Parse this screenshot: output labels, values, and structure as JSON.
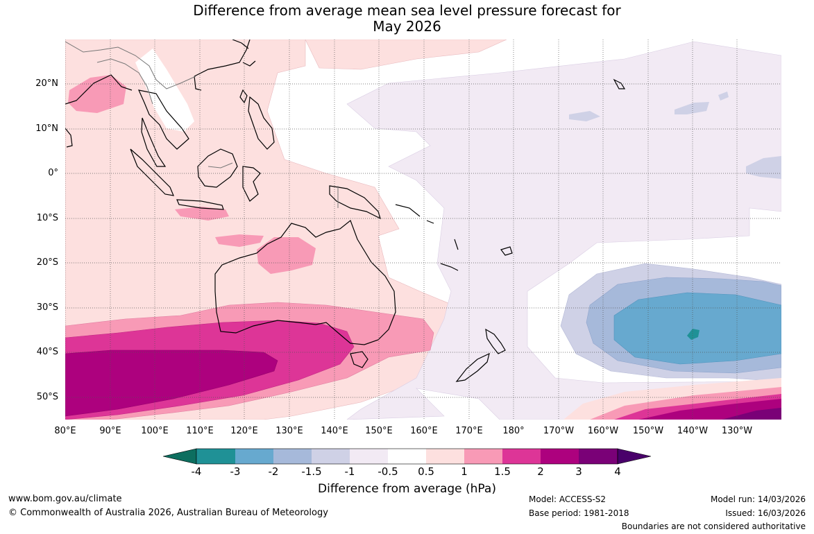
{
  "title_line1": "Difference from average mean sea level pressure forecast for",
  "title_line2": "May 2026",
  "lat_labels": [
    "20°N",
    "10°N",
    "0°",
    "10°S",
    "20°S",
    "30°S",
    "40°S",
    "50°S"
  ],
  "lon_labels": [
    "80°E",
    "90°E",
    "100°E",
    "110°E",
    "120°E",
    "130°E",
    "140°E",
    "150°E",
    "160°E",
    "170°E",
    "180°",
    "170°W",
    "160°W",
    "150°W",
    "140°W",
    "130°W"
  ],
  "colorbar": {
    "ticks": [
      "-4",
      "-3",
      "-2",
      "-1.5",
      "-1",
      "-0.5",
      "0.5",
      "1",
      "1.5",
      "2",
      "3",
      "4"
    ],
    "colors": [
      "#0d6e5f",
      "#1f9196",
      "#67a9cf",
      "#a6b9da",
      "#cfd1e6",
      "#f2eaf4",
      "#ffffff",
      "#fde0df",
      "#f89ab6",
      "#dd3597",
      "#ad017e",
      "#7a0177",
      "#49006a"
    ],
    "label": "Difference from average (hPa)"
  },
  "footer": {
    "url": "www.bom.gov.au/climate",
    "copyright": "© Commonwealth of Australia 2026, Australian Bureau of Meteorology",
    "model": "Model: ACCESS-S2",
    "base_period": "Base period: 1981-2018",
    "model_run": "Model run: 14/03/2026",
    "issued": "Issued: 16/03/2026",
    "disclaimer": "Boundaries are not considered authoritative"
  }
}
